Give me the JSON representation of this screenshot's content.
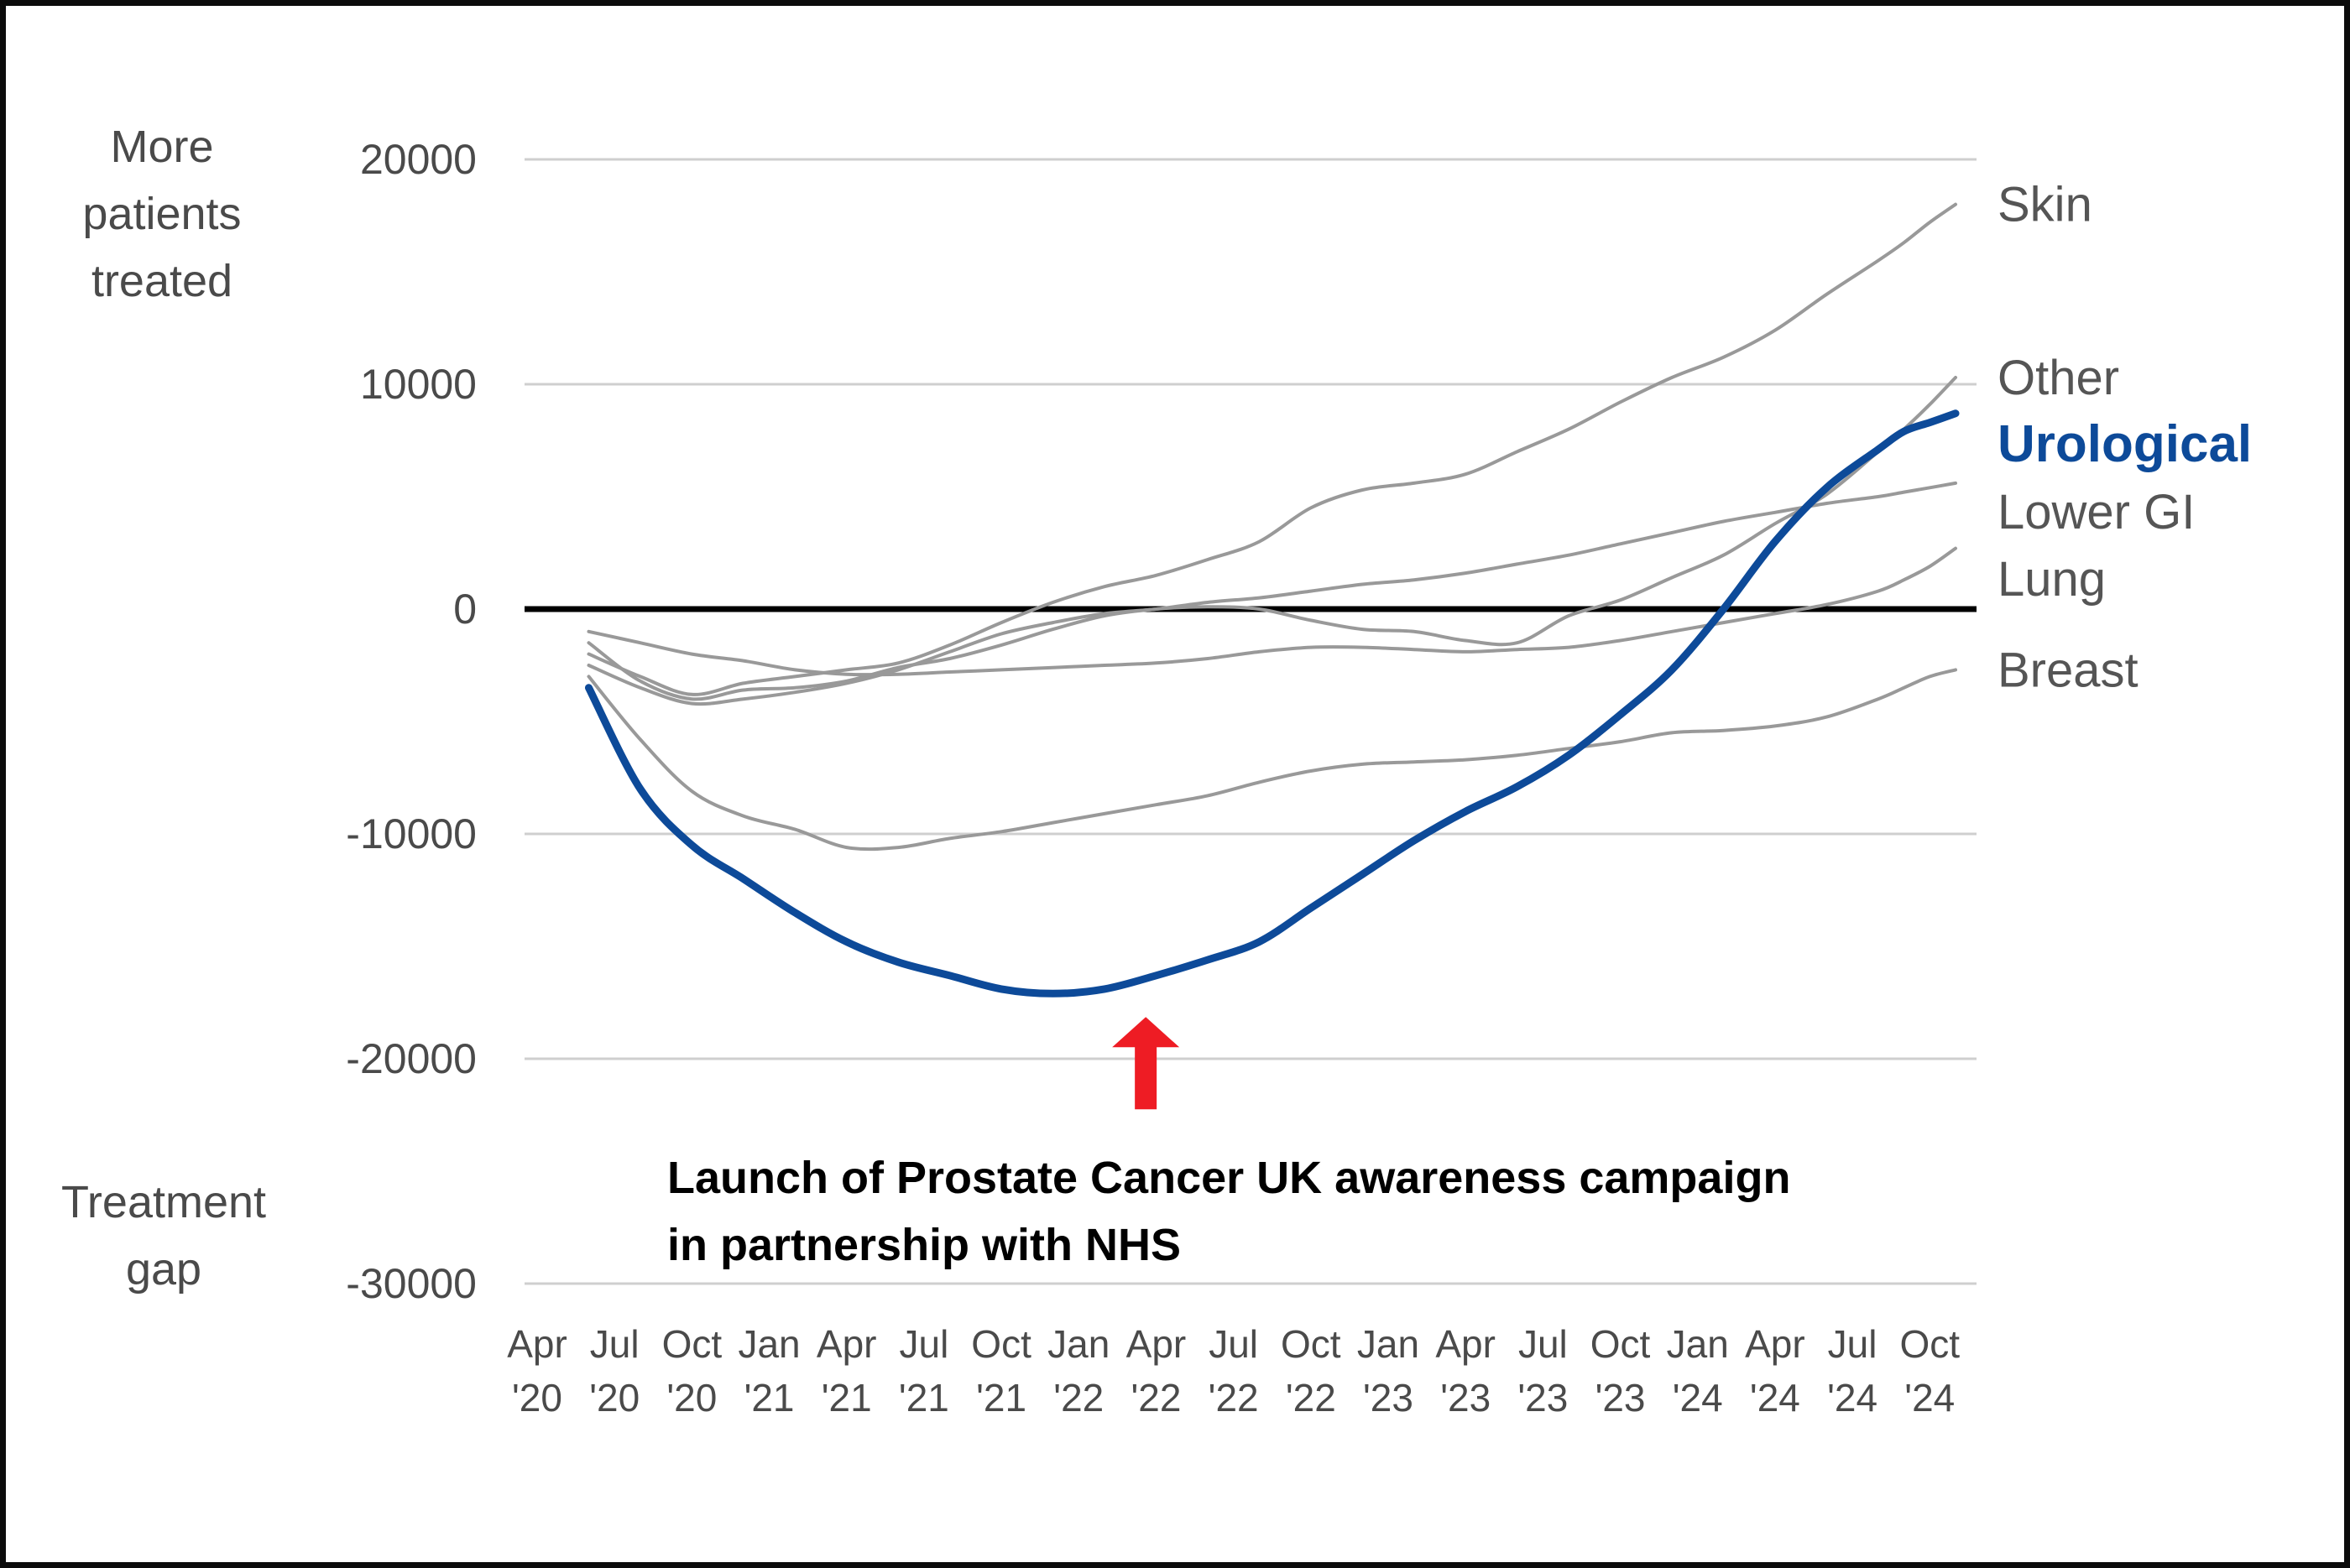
{
  "chart_data": {
    "type": "line",
    "title": "",
    "xlabel": "",
    "ylabel_top": [
      "More",
      "patients",
      "treated"
    ],
    "ylabel_bottom": [
      "Treatment",
      "gap"
    ],
    "ylim": [
      -30000,
      20000
    ],
    "yticks": [
      20000,
      10000,
      0,
      -10000,
      -20000,
      -30000
    ],
    "ytick_labels": [
      "20000",
      "10000",
      "0",
      "-10000",
      "-20000",
      "-30000"
    ],
    "x_range": [
      0,
      55
    ],
    "x_ticks": [
      0,
      3,
      6,
      9,
      12,
      15,
      18,
      21,
      24,
      27,
      30,
      33,
      36,
      39,
      42,
      45,
      48,
      51,
      54
    ],
    "x_tick_labels": [
      [
        "Apr",
        "'20"
      ],
      [
        "Jul",
        "'20"
      ],
      [
        "Oct",
        "'20"
      ],
      [
        "Jan",
        "'21"
      ],
      [
        "Apr",
        "'21"
      ],
      [
        "Jul",
        "'21"
      ],
      [
        "Oct",
        "'21"
      ],
      [
        "Jan",
        "'22"
      ],
      [
        "Apr",
        "'22"
      ],
      [
        "Jul",
        "'22"
      ],
      [
        "Oct",
        "'22"
      ],
      [
        "Jan",
        "'23"
      ],
      [
        "Apr",
        "'23"
      ],
      [
        "Jul",
        "'23"
      ],
      [
        "Oct",
        "'23"
      ],
      [
        "Jan",
        "'24"
      ],
      [
        "Apr",
        "'24"
      ],
      [
        "Jul",
        "'24"
      ],
      [
        "Oct",
        "'24"
      ]
    ],
    "grid": true,
    "zero_line": true,
    "series": [
      {
        "name": "Skin",
        "highlight": false,
        "x": [
          2,
          4,
          6,
          8,
          10,
          12,
          14,
          16,
          18,
          20,
          22,
          24,
          26,
          28,
          30,
          32,
          34,
          36,
          38,
          40,
          42,
          44,
          46,
          48,
          50,
          52,
          53,
          54,
          55
        ],
        "values": [
          -2000,
          -3000,
          -3800,
          -3300,
          -3000,
          -2700,
          -2400,
          -1600,
          -600,
          300,
          1000,
          1500,
          2200,
          3000,
          4500,
          5300,
          5600,
          6000,
          7000,
          8000,
          9200,
          10300,
          11200,
          12400,
          14000,
          15500,
          16300,
          17200,
          18000
        ]
      },
      {
        "name": "Other",
        "highlight": false,
        "x": [
          2,
          4,
          6,
          8,
          10,
          12,
          14,
          16,
          18,
          20,
          22,
          24,
          26,
          28,
          30,
          32,
          34,
          36,
          38,
          40,
          42,
          44,
          46,
          48,
          50,
          52,
          53,
          54,
          55
        ],
        "values": [
          -1500,
          -3200,
          -4000,
          -3600,
          -3500,
          -3200,
          -2600,
          -2200,
          -1600,
          -900,
          -300,
          0,
          100,
          0,
          -500,
          -900,
          -1000,
          -1400,
          -1500,
          -300,
          400,
          1400,
          2400,
          3800,
          5100,
          7000,
          8000,
          9100,
          10300
        ]
      },
      {
        "name": "Lower GI",
        "highlight": false,
        "x": [
          2,
          4,
          6,
          8,
          10,
          12,
          14,
          16,
          18,
          20,
          22,
          24,
          26,
          28,
          30,
          32,
          34,
          36,
          38,
          40,
          42,
          44,
          46,
          48,
          50,
          52,
          53,
          54,
          55
        ],
        "values": [
          -2500,
          -3500,
          -4200,
          -4000,
          -3700,
          -3300,
          -2700,
          -1900,
          -1100,
          -600,
          -200,
          0,
          300,
          500,
          800,
          1100,
          1300,
          1600,
          2000,
          2400,
          2900,
          3400,
          3900,
          4300,
          4700,
          5000,
          5200,
          5400,
          5600
        ]
      },
      {
        "name": "Lung",
        "highlight": false,
        "x": [
          2,
          4,
          6,
          8,
          10,
          12,
          14,
          16,
          18,
          20,
          22,
          24,
          26,
          28,
          30,
          32,
          34,
          36,
          38,
          40,
          42,
          44,
          46,
          48,
          50,
          52,
          53,
          54,
          55
        ],
        "values": [
          -1000,
          -1500,
          -2000,
          -2300,
          -2700,
          -2900,
          -2900,
          -2800,
          -2700,
          -2600,
          -2500,
          -2400,
          -2200,
          -1900,
          -1700,
          -1700,
          -1800,
          -1900,
          -1800,
          -1700,
          -1400,
          -1000,
          -600,
          -200,
          200,
          800,
          1300,
          1900,
          2700
        ]
      },
      {
        "name": "Breast",
        "highlight": false,
        "x": [
          2,
          4,
          6,
          8,
          10,
          12,
          14,
          16,
          18,
          20,
          22,
          24,
          26,
          28,
          30,
          32,
          34,
          36,
          38,
          40,
          42,
          44,
          46,
          48,
          50,
          52,
          53,
          54,
          55
        ],
        "values": [
          -3000,
          -5800,
          -8100,
          -9200,
          -9800,
          -10600,
          -10600,
          -10200,
          -9900,
          -9500,
          -9100,
          -8700,
          -8300,
          -7700,
          -7200,
          -6900,
          -6800,
          -6700,
          -6500,
          -6200,
          -5900,
          -5500,
          -5400,
          -5200,
          -4800,
          -4000,
          -3500,
          -3000,
          -2700
        ]
      },
      {
        "name": "Urological",
        "highlight": true,
        "x": [
          2,
          4,
          6,
          8,
          10,
          12,
          14,
          16,
          18,
          20,
          22,
          24,
          26,
          28,
          30,
          32,
          34,
          36,
          38,
          40,
          42,
          44,
          46,
          48,
          50,
          52,
          53,
          54,
          55
        ],
        "values": [
          -3500,
          -8000,
          -10500,
          -12000,
          -13500,
          -14800,
          -15700,
          -16300,
          -16900,
          -17100,
          -16900,
          -16300,
          -15600,
          -14800,
          -13300,
          -11800,
          -10300,
          -9000,
          -7900,
          -6500,
          -4700,
          -2700,
          0,
          3000,
          5400,
          7100,
          7900,
          8300,
          8700
        ]
      }
    ],
    "annotation": {
      "lines": [
        "Launch of Prostate Cancer UK awareness campaign",
        "in partnership with NHS"
      ],
      "arrow_x": 23.6,
      "arrow_points_to_y": -17100,
      "arrow_color": "#ee1c24"
    },
    "colors": {
      "highlight": "#0d4a99",
      "others": "#999999",
      "grid": "#cfcfcf",
      "zero_line": "#000000",
      "axis_text": "#4a4a4a"
    }
  }
}
